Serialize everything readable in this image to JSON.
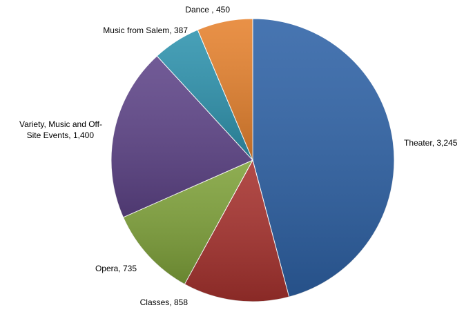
{
  "chart_data": {
    "type": "pie",
    "title": "",
    "label_style": "category, value",
    "slices": [
      {
        "label": "Theater",
        "value": 3245,
        "label_lines": [
          "Theater, 3,245"
        ],
        "color": "#2E62A6"
      },
      {
        "label": "Classes",
        "value": 858,
        "label_lines": [
          "Classes, 858"
        ],
        "color": "#A7322E"
      },
      {
        "label": "Opera",
        "value": 735,
        "label_lines": [
          "Opera, 735"
        ],
        "color": "#7FA23A"
      },
      {
        "label": "Variety, Music and Off-Site Events",
        "value": 1400,
        "label_lines": [
          "Variety, Music and Off-",
          "Site Events, 1,400"
        ],
        "color": "#5E4488"
      },
      {
        "label": "Music from Salem",
        "value": 387,
        "label_lines": [
          "Music from Salem, 387"
        ],
        "color": "#2E93AE"
      },
      {
        "label": "Dance",
        "value": 450,
        "label_lines": [
          "Dance , 450"
        ],
        "color": "#E6822E"
      }
    ]
  }
}
